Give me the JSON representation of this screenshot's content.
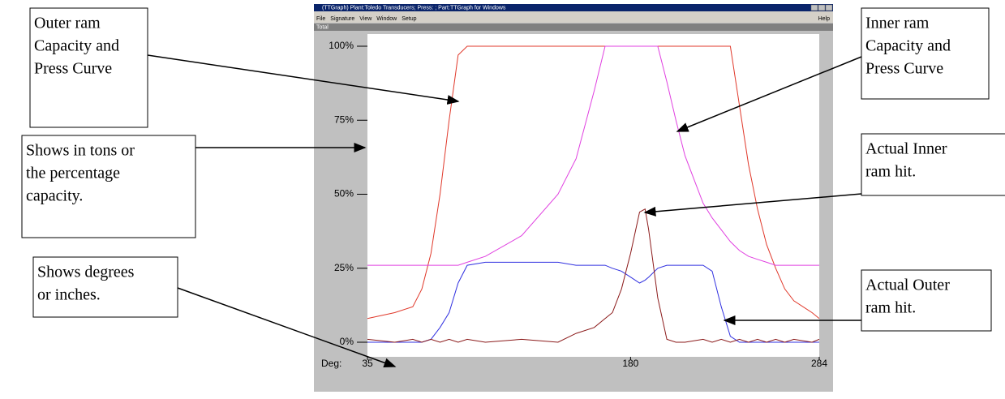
{
  "window": {
    "title": "(TTGraph) Plant:Toledo Transducers; Press: ; Part:TTGraph for Windows",
    "menus": [
      "File",
      "Signature",
      "View",
      "Window",
      "Setup"
    ],
    "help_menu": "Help",
    "subwindow_title": "Total"
  },
  "chart_data": {
    "type": "line",
    "x_label": "Deg:",
    "x": [
      35,
      50,
      60,
      65,
      70,
      75,
      80,
      85,
      90,
      100,
      120,
      140,
      150,
      160,
      166,
      170,
      175,
      180,
      185,
      188,
      190,
      195,
      200,
      205,
      210,
      220,
      225,
      230,
      235,
      240,
      245,
      250,
      255,
      260,
      265,
      270,
      280,
      284
    ],
    "xlim": [
      35,
      284
    ],
    "xticks": [
      35,
      180,
      284
    ],
    "ylim": [
      0,
      100
    ],
    "yticks": [
      {
        "value": 0,
        "label": "0%"
      },
      {
        "value": 25,
        "label": "25%"
      },
      {
        "value": 50,
        "label": "50%"
      },
      {
        "value": 75,
        "label": "75%"
      },
      {
        "value": 100,
        "label": "100%"
      }
    ],
    "series": [
      {
        "name": "Outer ram capacity",
        "color": "#e0392b",
        "values": [
          8,
          10,
          12,
          18,
          30,
          50,
          75,
          97,
          100,
          100,
          100,
          100,
          100,
          100,
          100,
          100,
          100,
          100,
          100,
          100,
          100,
          100,
          100,
          100,
          100,
          100,
          100,
          100,
          100,
          80,
          60,
          45,
          33,
          25,
          18,
          14,
          10,
          8
        ]
      },
      {
        "name": "Inner ram capacity",
        "color": "#e040e0",
        "values": [
          26,
          26,
          26,
          26,
          26,
          26,
          26,
          26,
          27,
          29,
          36,
          50,
          62,
          85,
          100,
          100,
          100,
          100,
          100,
          100,
          100,
          100,
          88,
          75,
          63,
          47,
          42,
          38,
          34,
          31,
          29,
          28,
          27,
          26,
          26,
          26,
          26,
          26
        ]
      },
      {
        "name": "Actual outer ram hit",
        "color": "#3030e0",
        "values": [
          0,
          0,
          0,
          0,
          1,
          5,
          10,
          20,
          26,
          27,
          27,
          27,
          26,
          26,
          26,
          25,
          24,
          22,
          20,
          21,
          22,
          25,
          26,
          26,
          26,
          26,
          24,
          12,
          2,
          0,
          0,
          0,
          0,
          0,
          0,
          0,
          0,
          0
        ]
      },
      {
        "name": "Actual inner ram hit",
        "color": "#8b1a1a",
        "values": [
          1,
          0,
          1,
          0,
          1,
          0,
          1,
          0,
          1,
          0,
          1,
          0,
          3,
          5,
          8,
          10,
          18,
          30,
          44,
          45,
          38,
          15,
          1,
          0,
          0,
          1,
          0,
          1,
          0,
          1,
          0,
          1,
          0,
          1,
          0,
          1,
          0,
          1
        ]
      }
    ]
  },
  "callouts": [
    {
      "lines": [
        "Outer ram",
        "Capacity and",
        "Press Curve"
      ]
    },
    {
      "lines": [
        "Shows in tons or",
        "the percentage",
        "capacity."
      ]
    },
    {
      "lines": [
        "Shows degrees",
        "or inches."
      ]
    },
    {
      "lines": [
        "Inner ram",
        "Capacity  and",
        "Press Curve"
      ]
    },
    {
      "lines": [
        "Actual Inner",
        "ram hit."
      ]
    },
    {
      "lines": [
        "Actual Outer",
        "ram hit."
      ]
    }
  ]
}
